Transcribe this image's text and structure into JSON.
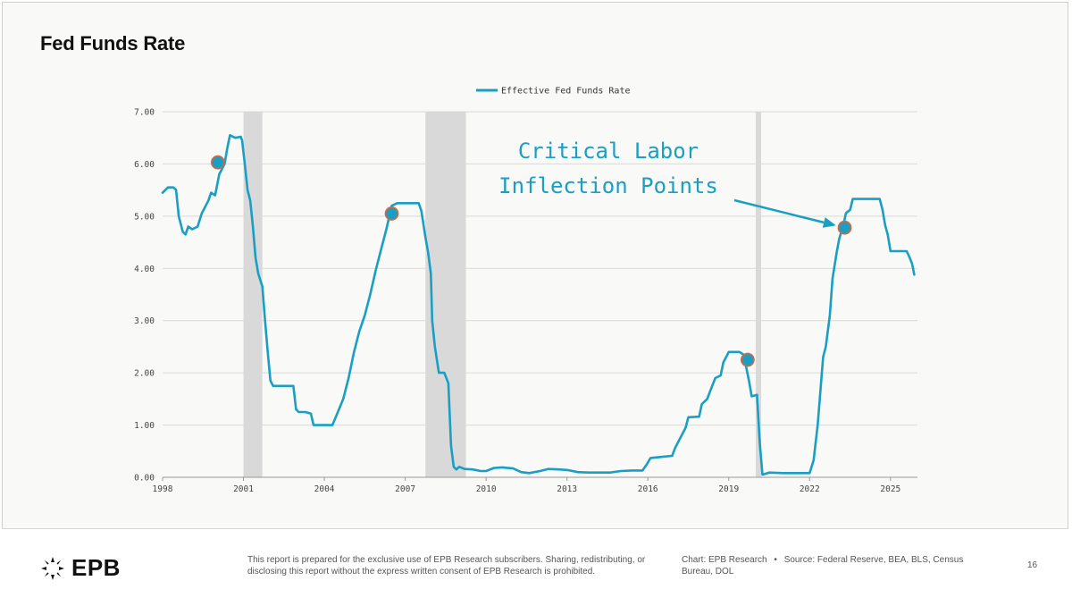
{
  "page": {
    "title": "Fed Funds Rate",
    "logo_text": "EPB",
    "disclaimer": "This report is prepared for the exclusive use of EPB Research subscribers. Sharing, redistributing, or disclosing this report without the express written consent of EPB Research is prohibited.",
    "credits_chart": "Chart: EPB Research",
    "credits_sep": "•",
    "credits_source": "Source: Federal Reserve, BEA, BLS, Census Bureau, DOL",
    "page_number": "16"
  },
  "colors": {
    "line": "#1a9fc4",
    "recession": "#d9d9d9",
    "marker_fill": "#1a9fc4",
    "marker_stroke": "#c76b4a",
    "annotation": "#1a9fc4",
    "grid": "#d9d9d9"
  },
  "chart_data": {
    "type": "line",
    "title": "",
    "xlabel": "",
    "ylabel": "",
    "xlim": [
      1998,
      2026
    ],
    "ylim": [
      0,
      7
    ],
    "x_ticks": [
      "1998",
      "2001",
      "2004",
      "2007",
      "2010",
      "2013",
      "2016",
      "2019",
      "2022",
      "2025"
    ],
    "y_ticks": [
      "0.00",
      "1.00",
      "2.00",
      "3.00",
      "4.00",
      "5.00",
      "6.00",
      "7.00"
    ],
    "grid": "horizontal",
    "legend_placement": "top-center",
    "series": [
      {
        "name": "Effective Fed Funds Rate",
        "points": [
          [
            1998.0,
            5.45
          ],
          [
            1998.2,
            5.55
          ],
          [
            1998.4,
            5.55
          ],
          [
            1998.5,
            5.5
          ],
          [
            1998.6,
            5.0
          ],
          [
            1998.75,
            4.7
          ],
          [
            1998.85,
            4.65
          ],
          [
            1998.95,
            4.8
          ],
          [
            1999.1,
            4.75
          ],
          [
            1999.3,
            4.8
          ],
          [
            1999.45,
            5.05
          ],
          [
            1999.6,
            5.2
          ],
          [
            1999.7,
            5.3
          ],
          [
            1999.8,
            5.45
          ],
          [
            1999.95,
            5.4
          ],
          [
            2000.1,
            5.8
          ],
          [
            2000.3,
            6.0
          ],
          [
            2000.4,
            6.3
          ],
          [
            2000.5,
            6.55
          ],
          [
            2000.7,
            6.5
          ],
          [
            2000.9,
            6.52
          ],
          [
            2000.95,
            6.45
          ],
          [
            2001.05,
            6.0
          ],
          [
            2001.15,
            5.5
          ],
          [
            2001.25,
            5.3
          ],
          [
            2001.35,
            4.8
          ],
          [
            2001.45,
            4.2
          ],
          [
            2001.55,
            3.9
          ],
          [
            2001.7,
            3.65
          ],
          [
            2001.8,
            3.0
          ],
          [
            2001.9,
            2.4
          ],
          [
            2002.0,
            1.85
          ],
          [
            2002.1,
            1.75
          ],
          [
            2002.3,
            1.75
          ],
          [
            2002.5,
            1.75
          ],
          [
            2002.7,
            1.75
          ],
          [
            2002.85,
            1.75
          ],
          [
            2002.95,
            1.3
          ],
          [
            2003.05,
            1.25
          ],
          [
            2003.3,
            1.25
          ],
          [
            2003.5,
            1.22
          ],
          [
            2003.6,
            1.0
          ],
          [
            2003.9,
            1.0
          ],
          [
            2004.1,
            1.0
          ],
          [
            2004.3,
            1.0
          ],
          [
            2004.5,
            1.25
          ],
          [
            2004.7,
            1.5
          ],
          [
            2004.9,
            1.9
          ],
          [
            2005.1,
            2.4
          ],
          [
            2005.3,
            2.8
          ],
          [
            2005.5,
            3.1
          ],
          [
            2005.7,
            3.5
          ],
          [
            2005.9,
            3.95
          ],
          [
            2006.1,
            4.35
          ],
          [
            2006.3,
            4.75
          ],
          [
            2006.5,
            5.2
          ],
          [
            2006.7,
            5.25
          ],
          [
            2006.9,
            5.25
          ],
          [
            2007.1,
            5.25
          ],
          [
            2007.3,
            5.25
          ],
          [
            2007.5,
            5.25
          ],
          [
            2007.6,
            5.1
          ],
          [
            2007.75,
            4.6
          ],
          [
            2007.85,
            4.3
          ],
          [
            2007.95,
            3.9
          ],
          [
            2008.0,
            3.0
          ],
          [
            2008.1,
            2.5
          ],
          [
            2008.25,
            2.0
          ],
          [
            2008.45,
            2.0
          ],
          [
            2008.6,
            1.8
          ],
          [
            2008.7,
            0.6
          ],
          [
            2008.8,
            0.2
          ],
          [
            2008.9,
            0.15
          ],
          [
            2009.0,
            0.2
          ],
          [
            2009.2,
            0.16
          ],
          [
            2009.5,
            0.15
          ],
          [
            2009.8,
            0.12
          ],
          [
            2010.0,
            0.12
          ],
          [
            2010.3,
            0.18
          ],
          [
            2010.6,
            0.19
          ],
          [
            2011.0,
            0.17
          ],
          [
            2011.3,
            0.1
          ],
          [
            2011.6,
            0.08
          ],
          [
            2012.0,
            0.12
          ],
          [
            2012.3,
            0.16
          ],
          [
            2012.7,
            0.15
          ],
          [
            2013.0,
            0.14
          ],
          [
            2013.4,
            0.1
          ],
          [
            2013.8,
            0.09
          ],
          [
            2014.2,
            0.09
          ],
          [
            2014.6,
            0.09
          ],
          [
            2015.0,
            0.12
          ],
          [
            2015.4,
            0.13
          ],
          [
            2015.8,
            0.13
          ],
          [
            2015.95,
            0.24
          ],
          [
            2016.1,
            0.37
          ],
          [
            2016.5,
            0.39
          ],
          [
            2016.9,
            0.41
          ],
          [
            2017.0,
            0.55
          ],
          [
            2017.2,
            0.75
          ],
          [
            2017.4,
            0.95
          ],
          [
            2017.5,
            1.15
          ],
          [
            2017.9,
            1.16
          ],
          [
            2018.0,
            1.4
          ],
          [
            2018.2,
            1.5
          ],
          [
            2018.35,
            1.7
          ],
          [
            2018.5,
            1.9
          ],
          [
            2018.7,
            1.95
          ],
          [
            2018.8,
            2.2
          ],
          [
            2019.0,
            2.4
          ],
          [
            2019.4,
            2.4
          ],
          [
            2019.55,
            2.35
          ],
          [
            2019.65,
            2.1
          ],
          [
            2019.75,
            1.85
          ],
          [
            2019.85,
            1.55
          ],
          [
            2020.05,
            1.58
          ],
          [
            2020.15,
            0.65
          ],
          [
            2020.25,
            0.05
          ],
          [
            2020.5,
            0.09
          ],
          [
            2021.0,
            0.08
          ],
          [
            2021.5,
            0.08
          ],
          [
            2021.8,
            0.08
          ],
          [
            2022.0,
            0.08
          ],
          [
            2022.15,
            0.33
          ],
          [
            2022.3,
            1.0
          ],
          [
            2022.5,
            2.3
          ],
          [
            2022.6,
            2.5
          ],
          [
            2022.75,
            3.1
          ],
          [
            2022.85,
            3.8
          ],
          [
            2023.0,
            4.3
          ],
          [
            2023.1,
            4.57
          ],
          [
            2023.25,
            4.83
          ],
          [
            2023.35,
            5.06
          ],
          [
            2023.5,
            5.12
          ],
          [
            2023.6,
            5.33
          ],
          [
            2024.0,
            5.33
          ],
          [
            2024.3,
            5.33
          ],
          [
            2024.6,
            5.33
          ],
          [
            2024.7,
            5.13
          ],
          [
            2024.8,
            4.83
          ],
          [
            2024.9,
            4.64
          ],
          [
            2025.0,
            4.33
          ],
          [
            2025.3,
            4.33
          ],
          [
            2025.6,
            4.33
          ],
          [
            2025.7,
            4.22
          ],
          [
            2025.8,
            4.09
          ],
          [
            2025.88,
            3.88
          ]
        ]
      }
    ],
    "recessions": [
      {
        "start": 2001.0,
        "end": 2001.7
      },
      {
        "start": 2007.75,
        "end": 2009.25
      },
      {
        "start": 2020.0,
        "end": 2020.2
      }
    ],
    "highlight_points": [
      [
        2000.05,
        6.03
      ],
      [
        2006.5,
        5.05
      ],
      [
        2019.7,
        2.25
      ],
      [
        2023.3,
        4.78
      ]
    ],
    "annotations": [
      {
        "text": "Critical Labor",
        "arrow_to": [
          2023.3,
          4.78
        ]
      },
      {
        "text": "Inflection Points"
      }
    ]
  }
}
